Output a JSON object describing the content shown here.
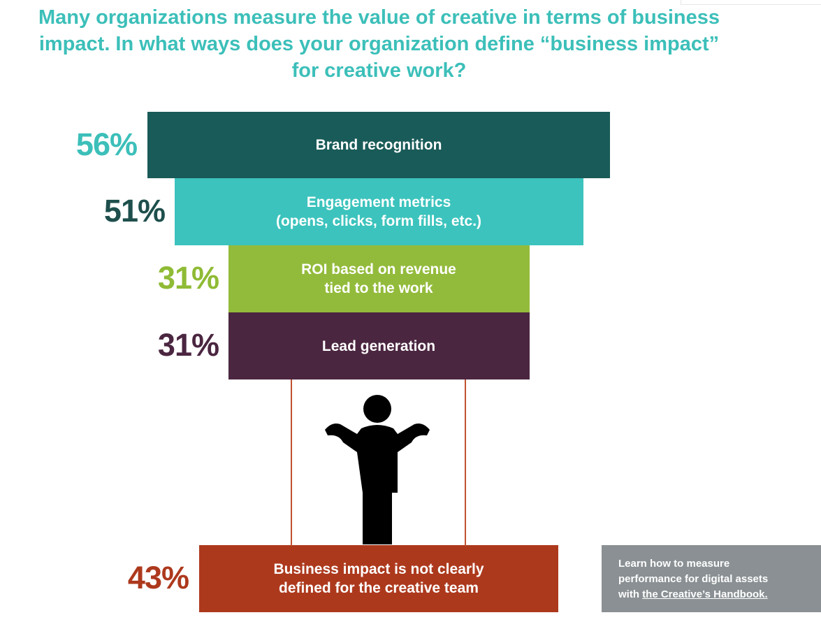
{
  "chart_data": {
    "type": "bar",
    "title_lines": [
      "Many organizations measure the value of creative in terms of business",
      "impact. In what ways does your organization define “business impact”",
      "for creative work?"
    ],
    "categories": [
      [
        "Brand recognition"
      ],
      [
        "Engagement metrics",
        "(opens, clicks, form fills, etc.)"
      ],
      [
        "ROI based on revenue",
        "tied to the work"
      ],
      [
        "Lead generation"
      ],
      [
        "Business impact is not clearly",
        "defined for the creative team"
      ]
    ],
    "values": [
      56,
      51,
      31,
      31,
      43
    ],
    "value_labels": [
      "56%",
      "51%",
      "31%",
      "31%",
      "43%"
    ],
    "unit": "%",
    "bar_colors": [
      "#195b58",
      "#3cc3bd",
      "#93bb3b",
      "#4b2640",
      "#ad391d"
    ],
    "label_colors": [
      "#3cbfb9",
      "#1e4f4c",
      "#8fbb35",
      "#4b2640",
      "#ad391d"
    ]
  },
  "cta": {
    "line1": "Learn how to measure",
    "line2": "performance for digital assets",
    "line3_prefix": "with ",
    "link": "the Creative’s Handbook."
  },
  "icons": {
    "person": "shrugging-person-icon"
  }
}
